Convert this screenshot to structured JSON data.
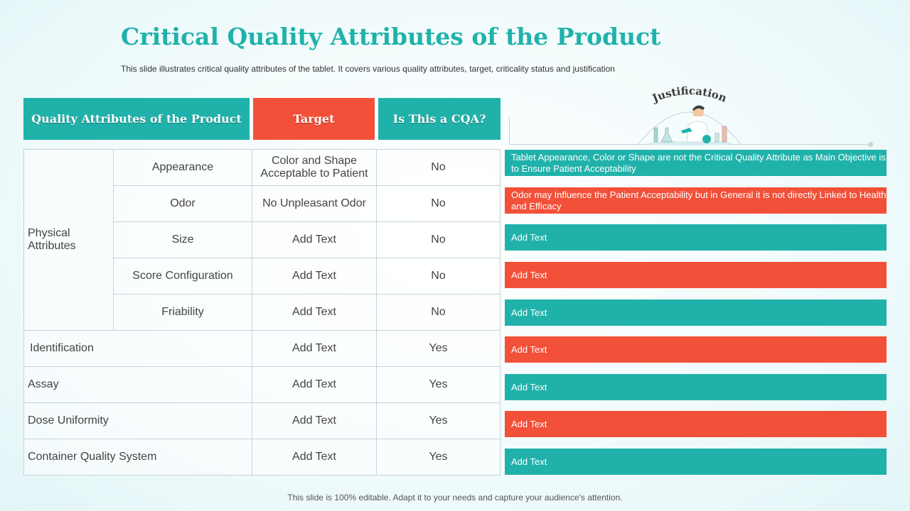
{
  "title": "Critical Quality Attributes of the Product",
  "subtitle": "This slide illustrates critical quality attributes of the tablet. It covers various  quality attributes, target, criticality status and justification",
  "headers": {
    "attributes": "Quality Attributes of the Product",
    "target": "Target",
    "cqa": "Is This a CQA?"
  },
  "justification_label": "Justification",
  "group_label": "Physical Attributes",
  "sub_rows": [
    {
      "attribute": "Appearance",
      "target": "Color and Shape Acceptable to Patient",
      "cqa": "No"
    },
    {
      "attribute": "Odor",
      "target": "No Unpleasant Odor",
      "cqa": "No"
    },
    {
      "attribute": "Size",
      "target": "Add Text",
      "cqa": "No"
    },
    {
      "attribute": "Score Configuration",
      "target": "Add Text",
      "cqa": "No"
    },
    {
      "attribute": "Friability",
      "target": "Add Text",
      "cqa": "No"
    }
  ],
  "rows": [
    {
      "attribute": "Identification",
      "target": "Add Text",
      "cqa": "Yes"
    },
    {
      "attribute": "Assay",
      "target": "Add Text",
      "cqa": "Yes"
    },
    {
      "attribute": "Dose Uniformity",
      "target": "Add Text",
      "cqa": "Yes"
    },
    {
      "attribute": "Container Quality  System",
      "target": "Add Text",
      "cqa": "Yes"
    }
  ],
  "justifications": [
    "Tablet Appearance, Color or Shape are not the Critical Quality Attribute as Main Objective  is to Ensure Patient Acceptability",
    "Odor may Influence the Patient Acceptability but in General it is not directly Linked to Health and Efficacy",
    "Add Text",
    "Add Text",
    "Add Text",
    "Add Text",
    "Add Text",
    "Add Text",
    "Add Text"
  ],
  "colors": {
    "teal": "#20b2aa",
    "red": "#f25038",
    "title": "#20b2aa"
  },
  "icons": [
    "scientist-illustration"
  ],
  "footer": "This slide is 100% editable. Adapt it to your needs and capture your audience's attention."
}
